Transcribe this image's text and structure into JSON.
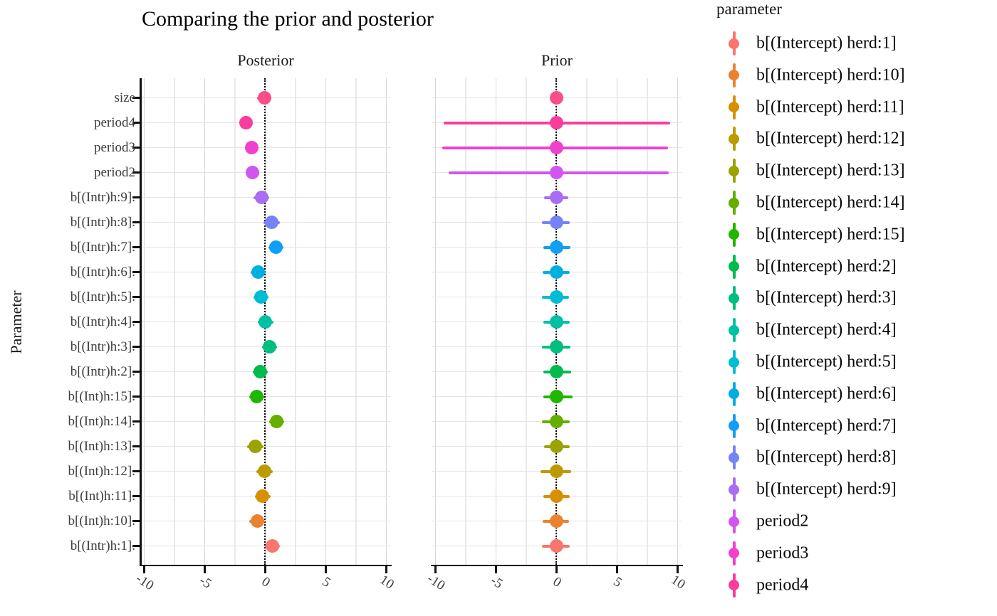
{
  "chart_data": {
    "type": "pointrange",
    "title": "Comparing the prior and posterior",
    "ylabel": "Parameter",
    "xlabel": "",
    "facets": [
      "Posterior",
      "Prior"
    ],
    "x_ticks": [
      -10,
      -5,
      0,
      5,
      10
    ],
    "x_range": [
      -10.35,
      10.35
    ],
    "x_minor_step": 2.5,
    "grid": "on",
    "zero_reference_line": {
      "x": 0,
      "style": "dotted",
      "color": "#000000"
    },
    "rows": [
      {
        "label": "size",
        "param": "size",
        "color": "#FB4E86",
        "posterior": {
          "est": -0.08,
          "lo": -0.7,
          "hi": 0.5
        },
        "prior": {
          "est": 0,
          "lo": -0.3,
          "hi": 0.3
        }
      },
      {
        "label": "period4",
        "param": "period4",
        "color": "#FA3C9E",
        "posterior": {
          "est": -1.57,
          "lo": -2.15,
          "hi": -1.0
        },
        "prior": {
          "est": 0,
          "lo": -9.3,
          "hi": 9.4
        }
      },
      {
        "label": "period3",
        "param": "period3",
        "color": "#F041CC",
        "posterior": {
          "est": -1.13,
          "lo": -1.7,
          "hi": -0.58
        },
        "prior": {
          "est": 0,
          "lo": -9.45,
          "hi": 9.2
        }
      },
      {
        "label": "period2",
        "param": "period2",
        "color": "#D355F0",
        "posterior": {
          "est": -1.05,
          "lo": -1.6,
          "hi": -0.52
        },
        "prior": {
          "est": 0,
          "lo": -8.9,
          "hi": 9.25
        }
      },
      {
        "label": "b[(Intr)h:9].",
        "param": "b[(Intercept) herd:9]",
        "color": "#A86DF2",
        "posterior": {
          "est": -0.3,
          "lo": -0.95,
          "hi": 0.33
        },
        "prior": {
          "est": 0,
          "lo": -1.05,
          "hi": 0.95
        }
      },
      {
        "label": "b[(Intr)h:8].",
        "param": "b[(Intercept) herd:8]",
        "color": "#7583F7",
        "posterior": {
          "est": 0.52,
          "lo": -0.12,
          "hi": 1.18
        },
        "prior": {
          "est": 0,
          "lo": -1.2,
          "hi": 1.1
        }
      },
      {
        "label": "b[(Intr)h:7].",
        "param": "b[(Intercept) herd:7]",
        "color": "#109FF5",
        "posterior": {
          "est": 0.9,
          "lo": 0.28,
          "hi": 1.52
        },
        "prior": {
          "est": 0,
          "lo": -1.1,
          "hi": 1.15
        }
      },
      {
        "label": "b[(Intr)h:6].",
        "param": "b[(Intercept) herd:6]",
        "color": "#00AEE0",
        "posterior": {
          "est": -0.6,
          "lo": -1.22,
          "hi": 0.02
        },
        "prior": {
          "est": 0,
          "lo": -1.15,
          "hi": 1.1
        }
      },
      {
        "label": "b[(Intr)h:5].",
        "param": "b[(Intercept) herd:5]",
        "color": "#00BCD4",
        "posterior": {
          "est": -0.34,
          "lo": -0.96,
          "hi": 0.28
        },
        "prior": {
          "est": 0,
          "lo": -1.2,
          "hi": 1.05
        }
      },
      {
        "label": "b[(Intr)h:4].",
        "param": "b[(Intercept) herd:4]",
        "color": "#00C1A3",
        "posterior": {
          "est": 0.02,
          "lo": -0.62,
          "hi": 0.66
        },
        "prior": {
          "est": 0,
          "lo": -1.1,
          "hi": 1.1
        }
      },
      {
        "label": "b[(Intr)h:3].",
        "param": "b[(Intercept) herd:3]",
        "color": "#00BF7D",
        "posterior": {
          "est": 0.37,
          "lo": -0.25,
          "hi": 0.99
        },
        "prior": {
          "est": 0,
          "lo": -1.2,
          "hi": 1.15
        }
      },
      {
        "label": "b[(Intr)h:2].",
        "param": "b[(Intercept) herd:2]",
        "color": "#00BB4E",
        "posterior": {
          "est": -0.43,
          "lo": -1.05,
          "hi": 0.19
        },
        "prior": {
          "est": 0,
          "lo": -1.1,
          "hi": 1.2
        }
      },
      {
        "label": "b[(Int)h:15].",
        "param": "b[(Intercept) herd:15]",
        "color": "#21B600",
        "posterior": {
          "est": -0.7,
          "lo": -1.35,
          "hi": -0.08
        },
        "prior": {
          "est": 0,
          "lo": -1.1,
          "hi": 1.3
        }
      },
      {
        "label": "b[(Int)h:14].",
        "param": "b[(Intercept) herd:14]",
        "color": "#64AE00",
        "posterior": {
          "est": 0.95,
          "lo": 0.33,
          "hi": 1.57
        },
        "prior": {
          "est": 0,
          "lo": -1.2,
          "hi": 1.1
        }
      },
      {
        "label": "b[(Int)h:13].",
        "param": "b[(Intercept) herd:13]",
        "color": "#9AA400",
        "posterior": {
          "est": -0.82,
          "lo": -1.5,
          "hi": -0.17
        },
        "prior": {
          "est": 0,
          "lo": -1.05,
          "hi": 1.1
        }
      },
      {
        "label": "b[(Int)h:12].",
        "param": "b[(Intercept) herd:12]",
        "color": "#BC9B00",
        "posterior": {
          "est": -0.04,
          "lo": -0.72,
          "hi": 0.62
        },
        "prior": {
          "est": 0,
          "lo": -1.3,
          "hi": 1.2
        }
      },
      {
        "label": "b[(Int)h:11].",
        "param": "b[(Intercept) herd:11]",
        "color": "#D89000",
        "posterior": {
          "est": -0.22,
          "lo": -0.86,
          "hi": 0.42
        },
        "prior": {
          "est": 0,
          "lo": -1.1,
          "hi": 1.1
        }
      },
      {
        "label": "b[(Int)h:10].",
        "param": "b[(Intercept) herd:10]",
        "color": "#EA8331",
        "posterior": {
          "est": -0.66,
          "lo": -1.3,
          "hi": -0.04
        },
        "prior": {
          "est": 0,
          "lo": -1.15,
          "hi": 1.05
        }
      },
      {
        "label": "b[(Intr)h:1].",
        "param": "b[(Intercept) herd:1]",
        "color": "#F8766D",
        "posterior": {
          "est": 0.57,
          "lo": -0.05,
          "hi": 1.19
        },
        "prior": {
          "est": 0,
          "lo": -1.2,
          "hi": 1.1
        }
      }
    ],
    "legend": {
      "title": "parameter",
      "position": "right",
      "entries": [
        {
          "label": "b[(Intercept) herd:1]",
          "color": "#F8766D"
        },
        {
          "label": "b[(Intercept) herd:10]",
          "color": "#EA8331"
        },
        {
          "label": "b[(Intercept) herd:11]",
          "color": "#D89000"
        },
        {
          "label": "b[(Intercept) herd:12]",
          "color": "#BC9B00"
        },
        {
          "label": "b[(Intercept) herd:13]",
          "color": "#9AA400"
        },
        {
          "label": "b[(Intercept) herd:14]",
          "color": "#64AE00"
        },
        {
          "label": "b[(Intercept) herd:15]",
          "color": "#21B600"
        },
        {
          "label": "b[(Intercept) herd:2]",
          "color": "#00BB4E"
        },
        {
          "label": "b[(Intercept) herd:3]",
          "color": "#00BF7D"
        },
        {
          "label": "b[(Intercept) herd:4]",
          "color": "#00C1A3"
        },
        {
          "label": "b[(Intercept) herd:5]",
          "color": "#00BCD4"
        },
        {
          "label": "b[(Intercept) herd:6]",
          "color": "#00AEE0"
        },
        {
          "label": "b[(Intercept) herd:7]",
          "color": "#109FF5"
        },
        {
          "label": "b[(Intercept) herd:8]",
          "color": "#7583F7"
        },
        {
          "label": "b[(Intercept) herd:9]",
          "color": "#A86DF2"
        },
        {
          "label": "period2",
          "color": "#D355F0"
        },
        {
          "label": "period3",
          "color": "#F041CC"
        },
        {
          "label": "period4",
          "color": "#FA3C9E"
        }
      ]
    }
  }
}
